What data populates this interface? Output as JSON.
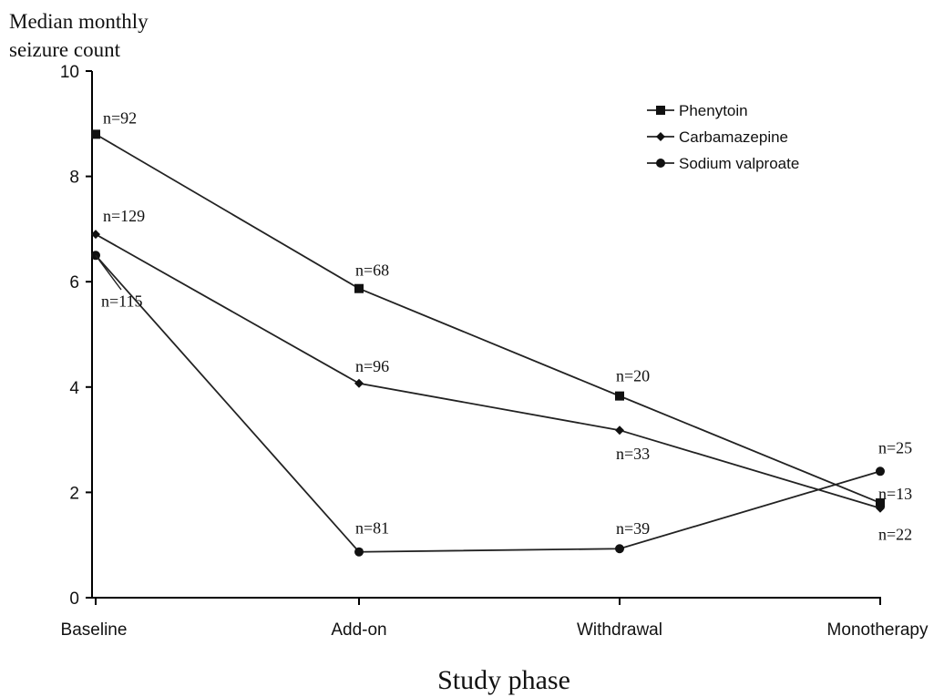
{
  "chart_data": {
    "type": "line",
    "ylabel_line1": "Median monthly",
    "ylabel_line2": "seizure count",
    "xlabel": "Study phase",
    "categories": [
      "Baseline",
      "Add-on",
      "Withdrawal",
      "Monotherapy"
    ],
    "ylim": [
      0,
      10
    ],
    "yticks": [
      "0",
      "2",
      "4",
      "6",
      "8",
      "10"
    ],
    "grid": false,
    "legend_position": "top-right",
    "series": [
      {
        "name": "Phenytoin",
        "marker": "square",
        "values": [
          8.8,
          5.87,
          3.83,
          1.8
        ],
        "labels": [
          "n=92",
          "n=68",
          "n=20",
          "n=13"
        ]
      },
      {
        "name": "Carbamazepine",
        "marker": "diamond",
        "values": [
          6.9,
          4.07,
          3.18,
          1.7
        ],
        "labels": [
          "n=129",
          "n=96",
          "n=33",
          "n=22"
        ]
      },
      {
        "name": "Sodium valproate",
        "marker": "circle",
        "values": [
          6.5,
          0.87,
          0.93,
          2.4
        ],
        "labels": [
          "n=115",
          "n=81",
          "n=39",
          "n=25"
        ]
      }
    ]
  }
}
